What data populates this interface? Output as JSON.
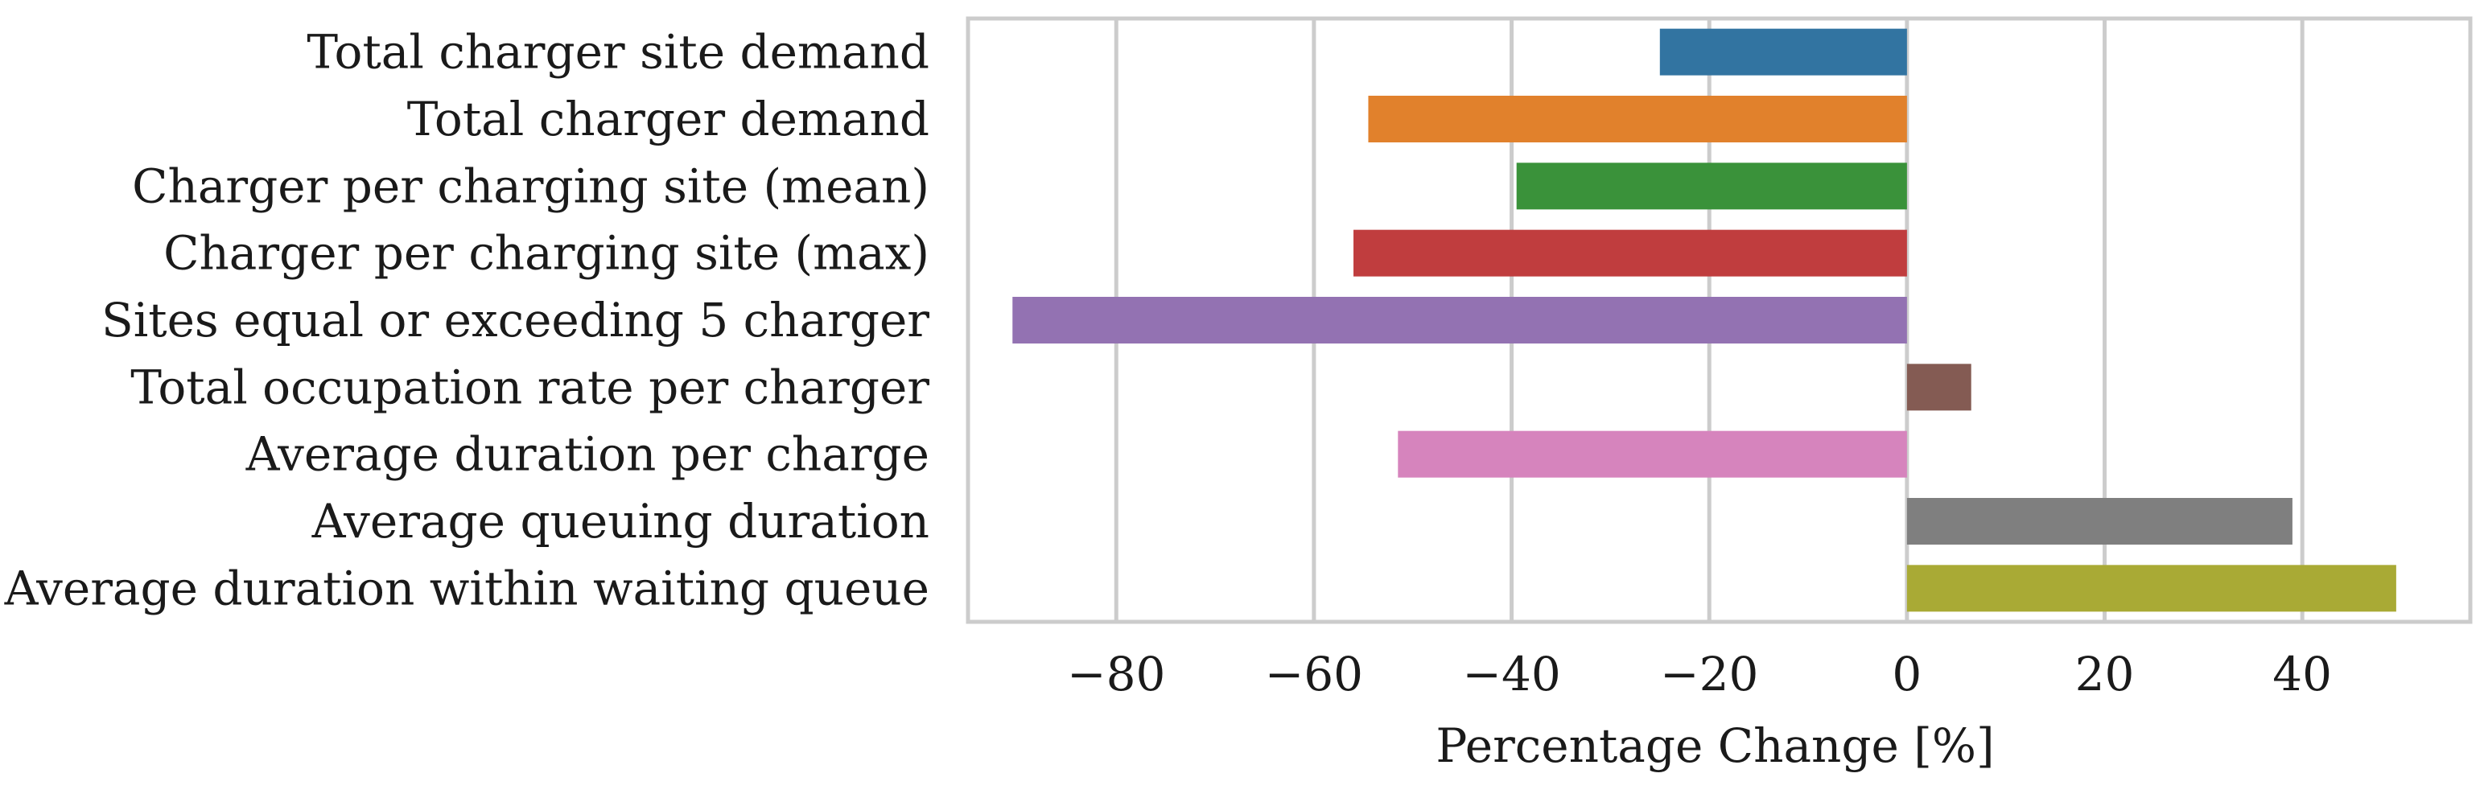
{
  "chart_data": {
    "type": "bar",
    "orientation": "horizontal",
    "title": "",
    "xlabel": "Percentage Change [%]",
    "ylabel": "",
    "xlim": [
      -95,
      57
    ],
    "xticks": [
      -80,
      -60,
      -40,
      -20,
      0,
      20,
      40
    ],
    "xtick_labels": [
      "−80",
      "−60",
      "−40",
      "−20",
      "0",
      "20",
      "40"
    ],
    "grid": "vertical",
    "legend": "none",
    "categories": [
      "Total charger site demand",
      "Total charger demand",
      "Charger per charging site (mean)",
      "Charger per charging site (max)",
      "Sites equal or exceeding 5 charger",
      "Total occupation rate per charger",
      "Average duration per charge",
      "Average queuing duration",
      "Average duration within waiting queue"
    ],
    "values": [
      -25.0,
      -54.5,
      -39.5,
      -56.0,
      -90.5,
      6.5,
      -51.5,
      39.0,
      49.5
    ],
    "colors": [
      "#3274a1",
      "#e1812c",
      "#3a923a",
      "#c03d3e",
      "#9372b2",
      "#845b53",
      "#d684bd",
      "#7f7f7f",
      "#a9aa35"
    ]
  }
}
